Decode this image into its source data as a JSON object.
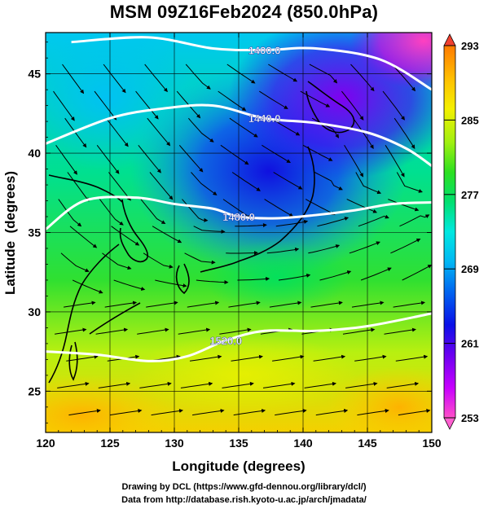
{
  "title": "MSM 09Z16Feb2024 (850.0hPa)",
  "credits": {
    "line1": "Drawing by DCL (https://www.gfd-dennou.org/library/dcl/)",
    "line2": "Data from http://database.rish.kyoto-u.ac.jp/arch/jmadata/"
  },
  "chart_data": {
    "type": "heatmap",
    "xlabel": "Longitude (degrees)",
    "ylabel": "Latitude  (degrees)",
    "xlim": [
      120,
      150
    ],
    "ylim": [
      22.4,
      47.6
    ],
    "xticks": [
      120,
      125,
      130,
      135,
      140,
      145,
      150
    ],
    "yticks": [
      25,
      30,
      35,
      40,
      45
    ],
    "colorbar": {
      "min": 253,
      "max": 293,
      "tick_labels": [
        "293",
        "285",
        "277",
        "269",
        "261",
        "253"
      ],
      "tick_values": [
        293,
        285,
        277,
        269,
        261,
        253
      ],
      "colors": [
        "#ff4fc8",
        "#c800ff",
        "#6a00f0",
        "#0a10e8",
        "#0066f0",
        "#00b8f4",
        "#00e8e0",
        "#00e070",
        "#2ce020",
        "#a0f010",
        "#f4f000",
        "#ffc000",
        "#ff7a00",
        "#f03010"
      ]
    },
    "contours": [
      {
        "label": "1400.0",
        "points": [
          [
            122,
            47.0
          ],
          [
            128,
            47.3
          ],
          [
            133,
            46.6
          ],
          [
            137,
            46.5
          ],
          [
            141,
            46.6
          ],
          [
            146,
            45.9
          ],
          [
            150,
            44.0
          ]
        ]
      },
      {
        "label": "1440.0",
        "points": [
          [
            120,
            40.6
          ],
          [
            125,
            42.2
          ],
          [
            129,
            42.8
          ],
          [
            133,
            43.0
          ],
          [
            137,
            42.2
          ],
          [
            141,
            41.9
          ],
          [
            145,
            41.3
          ],
          [
            148,
            40.3
          ],
          [
            150,
            39.2
          ]
        ]
      },
      {
        "label": "1480.0",
        "points": [
          [
            120,
            35.2
          ],
          [
            123,
            37.0
          ],
          [
            127,
            37.2
          ],
          [
            130,
            36.8
          ],
          [
            133,
            36.5
          ],
          [
            135,
            36.0
          ],
          [
            138,
            35.9
          ],
          [
            141,
            36.1
          ],
          [
            144,
            36.4
          ],
          [
            147,
            36.8
          ],
          [
            150,
            36.9
          ]
        ]
      },
      {
        "label": "1520.0",
        "points": [
          [
            120,
            27.5
          ],
          [
            124,
            27.3
          ],
          [
            128,
            26.9
          ],
          [
            131,
            27.2
          ],
          [
            134,
            28.2
          ],
          [
            137,
            28.8
          ],
          [
            141,
            28.8
          ],
          [
            145,
            29.1
          ],
          [
            150,
            29.9
          ]
        ]
      }
    ]
  }
}
